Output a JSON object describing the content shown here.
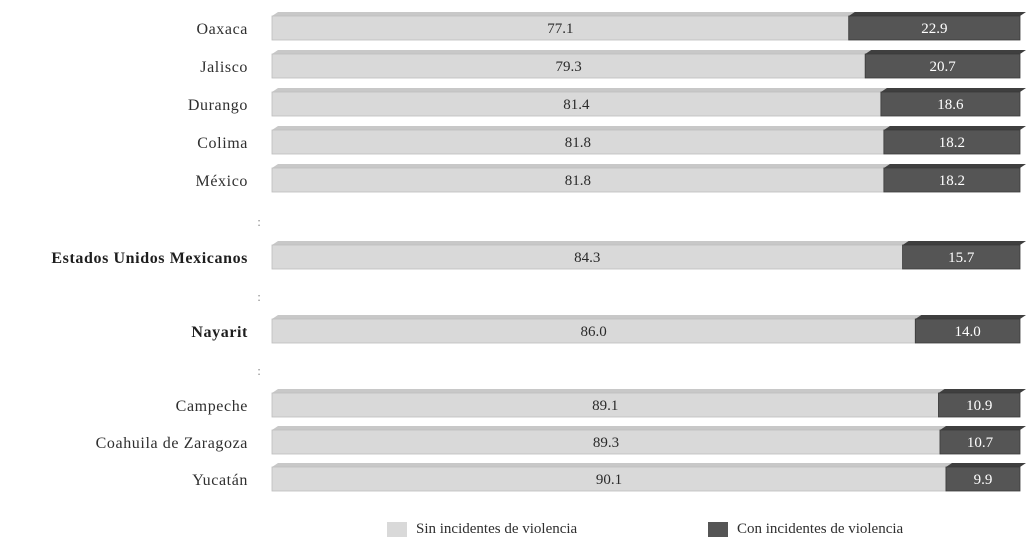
{
  "chart_data": {
    "type": "bar",
    "stacked": true,
    "orientation": "horizontal",
    "percent_stacked": true,
    "categories": [
      "Oaxaca",
      "Jalisco",
      "Durango",
      "Colima",
      "México",
      "Estados Unidos Mexicanos",
      "Nayarit",
      "Campeche",
      "Coahuila de Zaragoza",
      "Yucatán"
    ],
    "bold_categories": [
      "Estados Unidos Mexicanos",
      "Nayarit"
    ],
    "separator_text": ":",
    "series": [
      {
        "name": "Sin incidentes de violencia",
        "color": "#d9d9d9",
        "values": [
          77.1,
          79.3,
          81.4,
          81.8,
          81.8,
          84.3,
          86.0,
          89.1,
          89.3,
          90.1
        ],
        "labels": [
          "77.1",
          "79.3",
          "81.4",
          "81.8",
          "81.8",
          "84.3",
          "86.0",
          "89.1",
          "89.3",
          "90.1"
        ]
      },
      {
        "name": "Con incidentes de violencia",
        "color": "#555555",
        "values": [
          22.9,
          20.7,
          18.6,
          18.2,
          18.2,
          15.7,
          14.0,
          10.9,
          10.7,
          9.9
        ],
        "labels": [
          "22.9",
          "20.7",
          "18.6",
          "18.2",
          "18.2",
          "15.7",
          "14.0",
          "10.9",
          "10.7",
          "9.9"
        ]
      }
    ],
    "xlim": [
      0,
      100
    ],
    "grid": false,
    "legend_position": "bottom"
  }
}
